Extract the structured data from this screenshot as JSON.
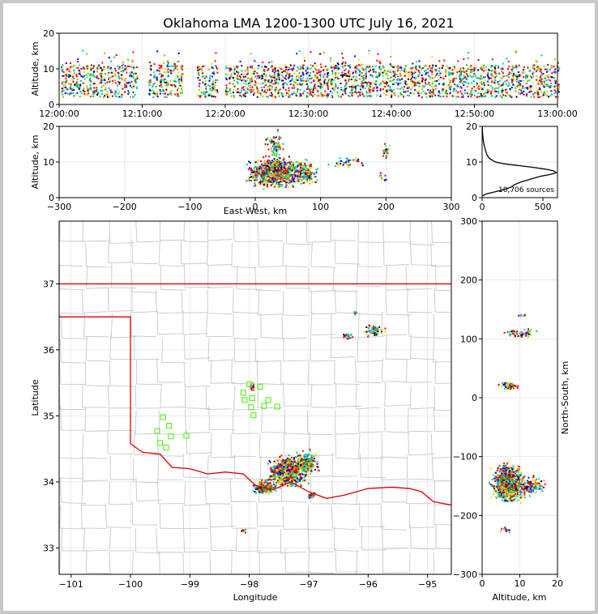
{
  "title": "Oklahoma LMA 1200-1300 UTC July 16, 2021",
  "colors": {
    "palette": [
      "#0000ff",
      "#00aaff",
      "#00ddcc",
      "#00cc44",
      "#88dd00",
      "#ffdd00",
      "#ff8800",
      "#ff0000",
      "#cc0000",
      "#ffffff",
      "#000000"
    ],
    "state_line": "#e00000",
    "county_line": "#c8c8c8",
    "station_marker": "#66ee33"
  },
  "chart_data": [
    {
      "name": "altitude-vs-time",
      "type": "scatter",
      "ylabel": "Altitude, km",
      "xlabel": "",
      "xlim": [
        0,
        60
      ],
      "ylim": [
        0,
        20
      ],
      "x_ticks": [
        "12:00:00",
        "12:10:00",
        "12:20:00",
        "12:30:00",
        "12:40:00",
        "12:50:00",
        "13:00:00"
      ],
      "y_ticks": [
        "0",
        "10",
        "20"
      ],
      "grid": true
    },
    {
      "name": "altitude-vs-east-west",
      "type": "scatter",
      "xlabel": "East-West, km",
      "ylabel": "Altitude, km",
      "xlim": [
        -300,
        300
      ],
      "ylim": [
        0,
        20
      ],
      "x_ticks": [
        "−300",
        "−200",
        "−100",
        "0",
        "100",
        "200",
        "300"
      ],
      "y_ticks": [
        "0",
        "10",
        "20"
      ],
      "clusters": [
        {
          "x": 30,
          "xspread": 28,
          "y": 7,
          "yspread": 3,
          "count": 900
        },
        {
          "x": 75,
          "xspread": 12,
          "y": 7,
          "yspread": 2.5,
          "count": 180
        },
        {
          "x": 30,
          "xspread": 10,
          "y": 15,
          "yspread": 2.5,
          "count": 90
        },
        {
          "x": 140,
          "xspread": 18,
          "y": 10,
          "yspread": 1.5,
          "count": 40
        },
        {
          "x": 200,
          "xspread": 5,
          "y": 13,
          "yspread": 1.5,
          "count": 25
        },
        {
          "x": 195,
          "xspread": 5,
          "y": 6,
          "yspread": 1,
          "count": 12
        }
      ],
      "grid": true
    },
    {
      "name": "altitude-histogram",
      "type": "line",
      "xlim": [
        0,
        620
      ],
      "ylim": [
        0,
        20
      ],
      "x_ticks": [
        "0",
        "500"
      ],
      "y_ticks": [
        "0",
        "10",
        "20"
      ],
      "annotation": "10,706 sources",
      "altitude_km": [
        0.5,
        1,
        1.5,
        2,
        2.5,
        3,
        3.5,
        4,
        4.5,
        5,
        5.5,
        6,
        6.5,
        7,
        7.5,
        8,
        8.5,
        9,
        9.5,
        10,
        11,
        12,
        13,
        14,
        15,
        16,
        17,
        18,
        19,
        20
      ],
      "count": [
        5,
        30,
        90,
        150,
        200,
        240,
        260,
        290,
        330,
        380,
        430,
        480,
        560,
        610,
        590,
        520,
        420,
        300,
        180,
        110,
        60,
        40,
        30,
        22,
        15,
        10,
        6,
        4,
        2,
        1
      ]
    },
    {
      "name": "plan-view-map",
      "type": "scatter",
      "xlabel": "Longitude",
      "ylabel": "Latitude",
      "xlim": [
        -101.2,
        -94.6
      ],
      "ylim": [
        32.6,
        37.95
      ],
      "x_ticks": [
        "−101",
        "−100",
        "−99",
        "−98",
        "−97",
        "−96",
        "−95"
      ],
      "y_ticks": [
        "33",
        "34",
        "35",
        "36",
        "37"
      ],
      "clusters": [
        {
          "lon": -97.35,
          "lat": 34.15,
          "lonspread": 0.22,
          "latspread": 0.16,
          "count": 900
        },
        {
          "lon": -97.75,
          "lat": 33.92,
          "lonspread": 0.12,
          "latspread": 0.07,
          "count": 260
        },
        {
          "lon": -97.05,
          "lat": 34.3,
          "lonspread": 0.15,
          "latspread": 0.12,
          "count": 220
        },
        {
          "lon": -96.95,
          "lat": 33.8,
          "lonspread": 0.05,
          "latspread": 0.04,
          "count": 40
        },
        {
          "lon": -97.95,
          "lat": 35.45,
          "lonspread": 0.03,
          "latspread": 0.05,
          "count": 35
        },
        {
          "lon": -96.35,
          "lat": 36.2,
          "lonspread": 0.06,
          "latspread": 0.03,
          "count": 30
        },
        {
          "lon": -95.9,
          "lat": 36.3,
          "lonspread": 0.12,
          "latspread": 0.07,
          "count": 60
        },
        {
          "lon": -96.2,
          "lat": 36.55,
          "lonspread": 0.03,
          "latspread": 0.03,
          "count": 8
        },
        {
          "lon": -98.1,
          "lat": 33.26,
          "lonspread": 0.04,
          "latspread": 0.03,
          "count": 14
        }
      ],
      "stations": [
        {
          "lon": -98.0,
          "lat": 35.48
        },
        {
          "lon": -97.82,
          "lat": 35.44
        },
        {
          "lon": -98.1,
          "lat": 35.35
        },
        {
          "lon": -97.95,
          "lat": 35.27
        },
        {
          "lon": -98.08,
          "lat": 35.24
        },
        {
          "lon": -97.68,
          "lat": 35.24
        },
        {
          "lon": -97.97,
          "lat": 35.13
        },
        {
          "lon": -97.75,
          "lat": 35.15
        },
        {
          "lon": -97.53,
          "lat": 35.14
        },
        {
          "lon": -97.93,
          "lat": 35.01
        },
        {
          "lon": -99.45,
          "lat": 34.98
        },
        {
          "lon": -99.35,
          "lat": 34.85
        },
        {
          "lon": -99.55,
          "lat": 34.77
        },
        {
          "lon": -99.32,
          "lat": 34.69
        },
        {
          "lon": -99.06,
          "lat": 34.7
        },
        {
          "lon": -99.5,
          "lat": 34.59
        },
        {
          "lon": -99.4,
          "lat": 34.52
        }
      ],
      "grid": true
    },
    {
      "name": "north-south-vs-altitude",
      "type": "scatter",
      "xlabel": "Altitude, km",
      "ylabel": "North-South, km",
      "xlim": [
        0,
        20
      ],
      "ylim": [
        -300,
        300
      ],
      "x_ticks": [
        "0",
        "10",
        "20"
      ],
      "y_ticks": [
        "−300",
        "−200",
        "−100",
        "0",
        "100",
        "200",
        "300"
      ],
      "clusters": [
        {
          "x": 7,
          "xspread": 3,
          "y": -145,
          "yspread": 22,
          "count": 900
        },
        {
          "x": 13,
          "xspread": 2.5,
          "y": -150,
          "yspread": 12,
          "count": 140
        },
        {
          "x": 7,
          "xspread": 1.8,
          "y": 20,
          "yspread": 6,
          "count": 70
        },
        {
          "x": 10,
          "xspread": 3,
          "y": 110,
          "yspread": 6,
          "count": 60
        },
        {
          "x": 6,
          "xspread": 1.5,
          "y": -225,
          "yspread": 3,
          "count": 14
        },
        {
          "x": 10,
          "xspread": 1.5,
          "y": 140,
          "yspread": 1,
          "count": 6
        }
      ],
      "grid": true
    }
  ]
}
